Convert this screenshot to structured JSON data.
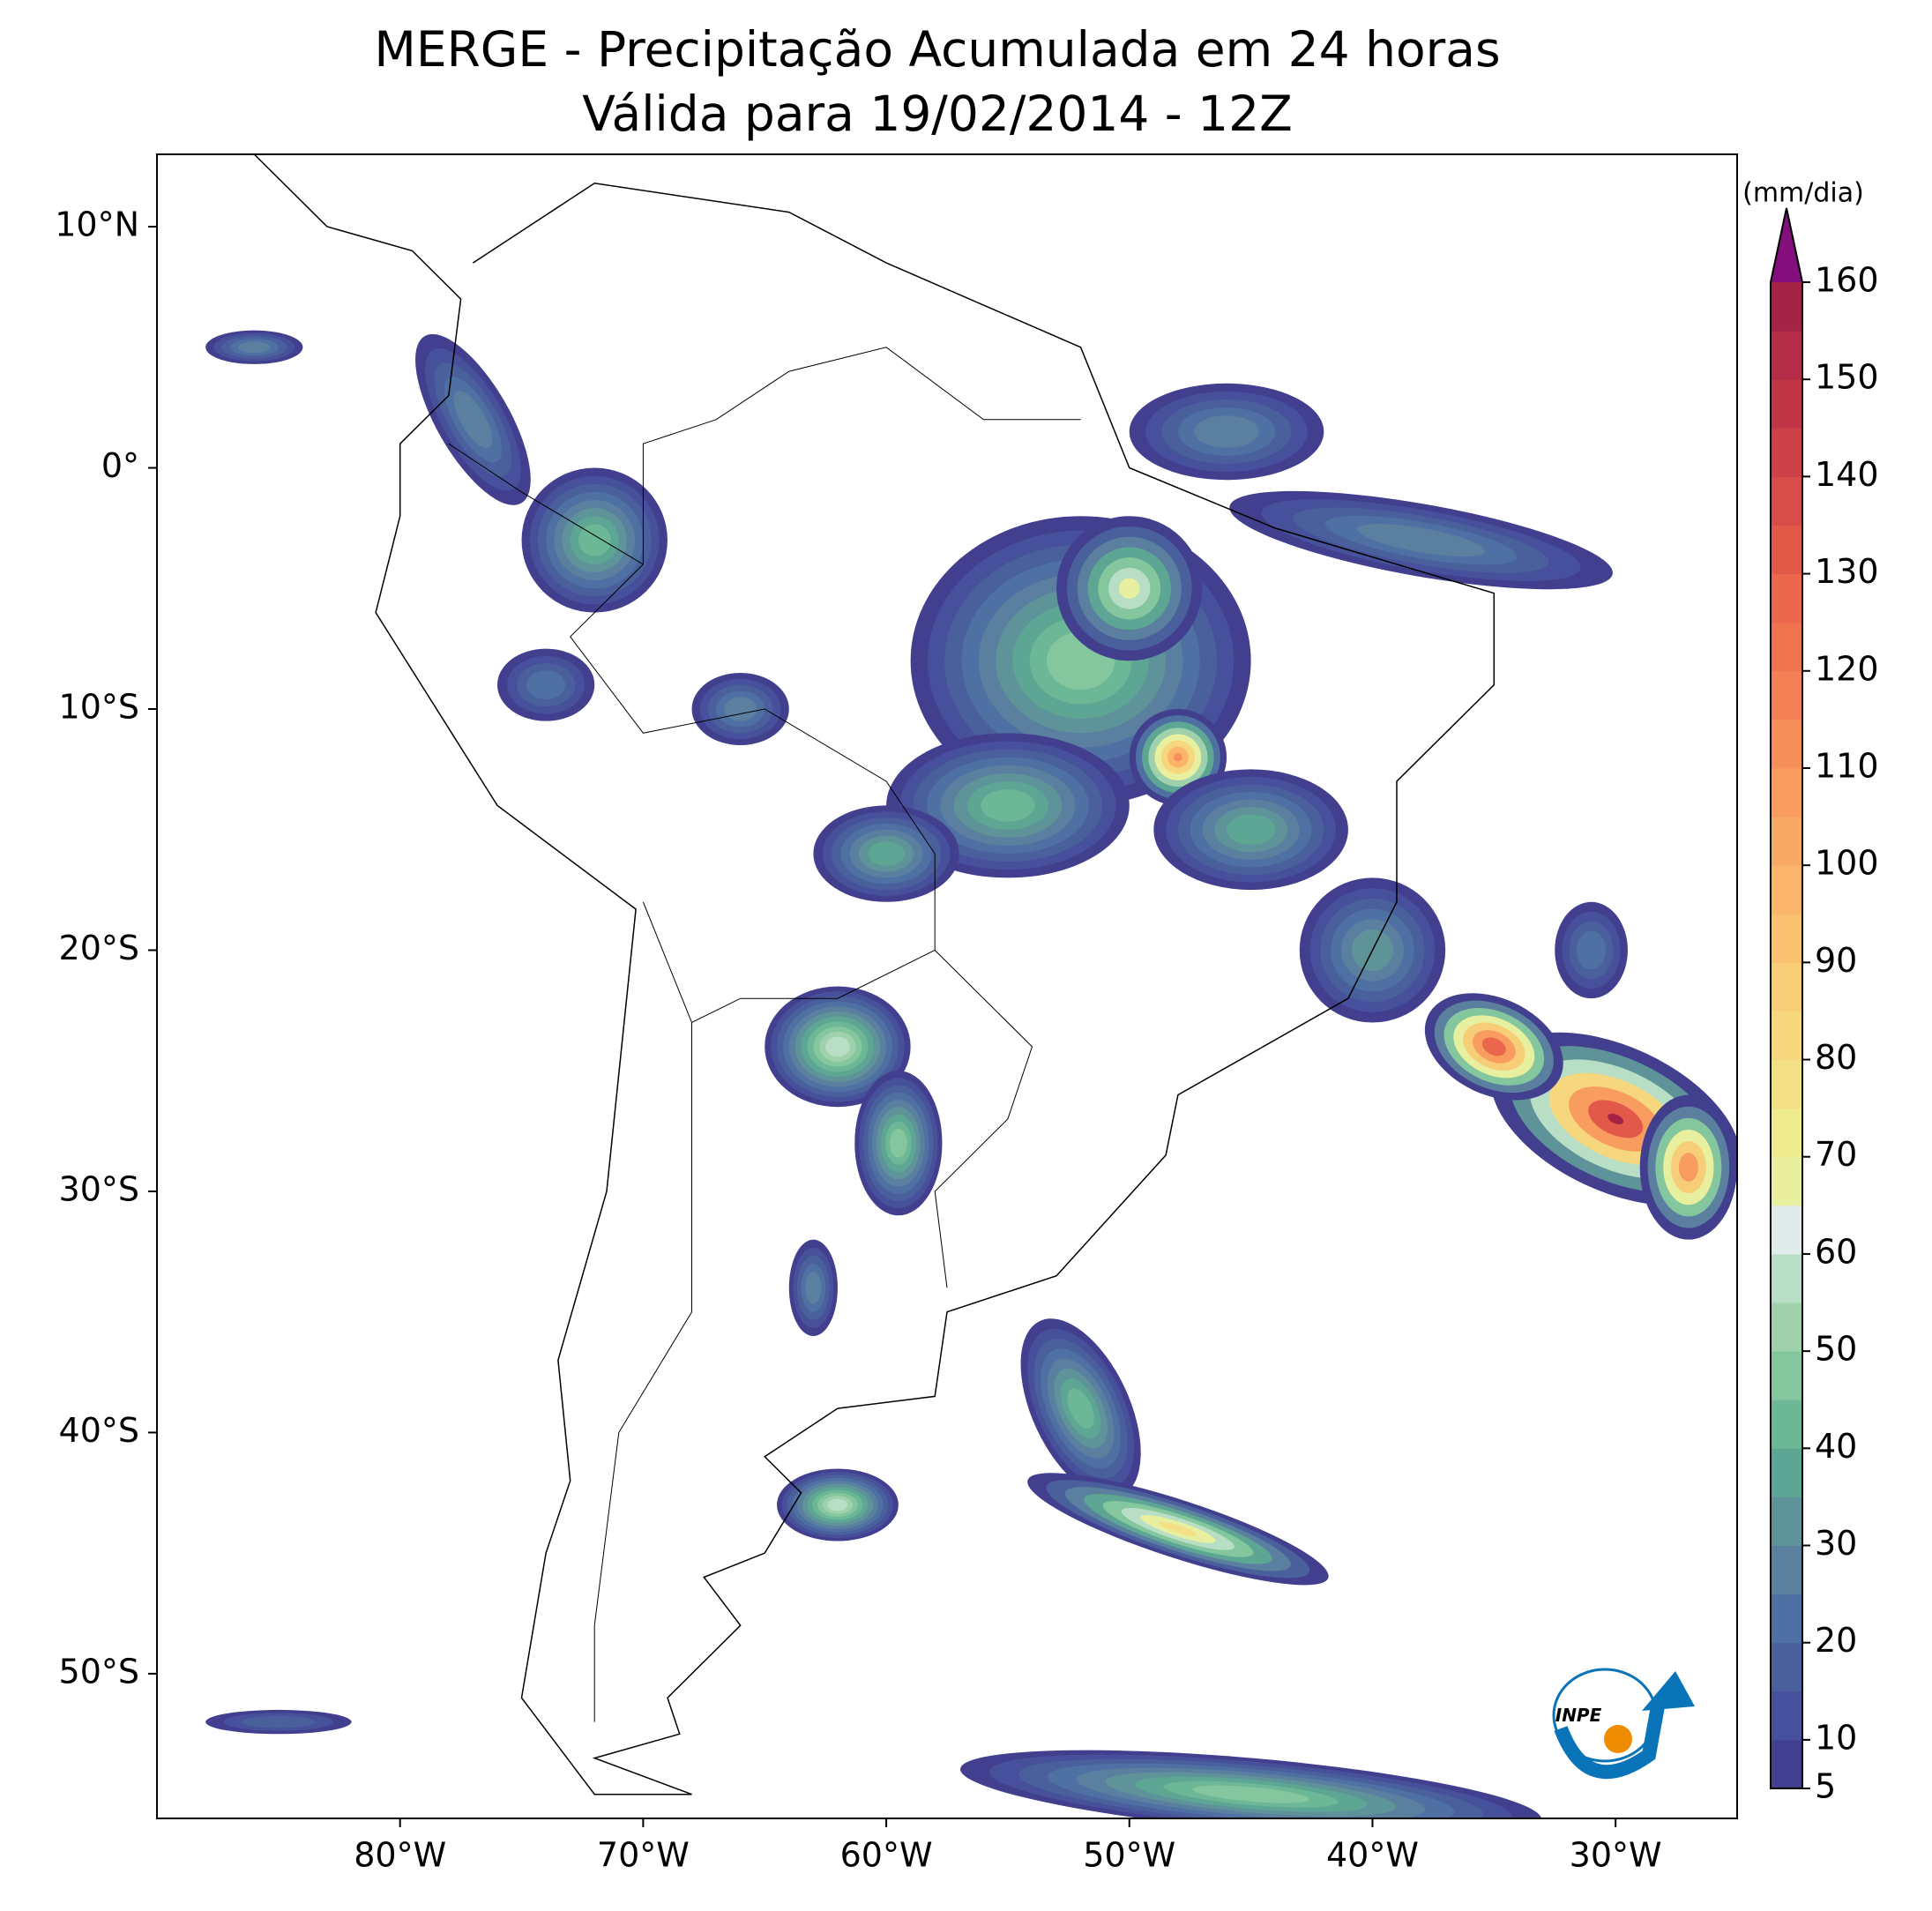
{
  "title": "MERGE - Precipitação Acumulada em 24 horas",
  "subtitle": "Válida para 19/02/2014 - 12Z",
  "map": {
    "xlim": [
      -90,
      -25
    ],
    "ylim": [
      -56,
      13
    ],
    "xticks": [
      {
        "value": -80,
        "label": "80°W"
      },
      {
        "value": -70,
        "label": "70°W"
      },
      {
        "value": -60,
        "label": "60°W"
      },
      {
        "value": -50,
        "label": "50°W"
      },
      {
        "value": -40,
        "label": "40°W"
      },
      {
        "value": -30,
        "label": "30°W"
      }
    ],
    "yticks": [
      {
        "value": 10,
        "label": "10°N"
      },
      {
        "value": 0,
        "label": "0°"
      },
      {
        "value": -10,
        "label": "10°S"
      },
      {
        "value": -20,
        "label": "20°S"
      },
      {
        "value": -30,
        "label": "30°S"
      },
      {
        "value": -40,
        "label": "40°S"
      },
      {
        "value": -50,
        "label": "50°S"
      }
    ]
  },
  "colorbar": {
    "label": "(mm/dia)",
    "lim": [
      5,
      160
    ],
    "ticks": [
      5,
      10,
      20,
      30,
      40,
      50,
      60,
      70,
      80,
      90,
      100,
      110,
      120,
      130,
      140,
      150,
      160
    ],
    "colors": [
      "#413f8e",
      "#47509a",
      "#4a609d",
      "#4f70a2",
      "#5a7f9f",
      "#5e9499",
      "#5ea694",
      "#6cb795",
      "#84c69e",
      "#9fd2ac",
      "#b8dfc5",
      "#dfeceb",
      "#e8ef9e",
      "#eeea8e",
      "#f3e085",
      "#f6d77e",
      "#f8cd77",
      "#f9c170",
      "#fab56b",
      "#f9a966",
      "#f89c60",
      "#f68f5a",
      "#f48155",
      "#f07350",
      "#ea664d",
      "#e2594a",
      "#d84d49",
      "#cd4148",
      "#c13647",
      "#b42c47",
      "#a62348"
    ],
    "extend_color": "#820f7c"
  },
  "logo": "INPE"
}
